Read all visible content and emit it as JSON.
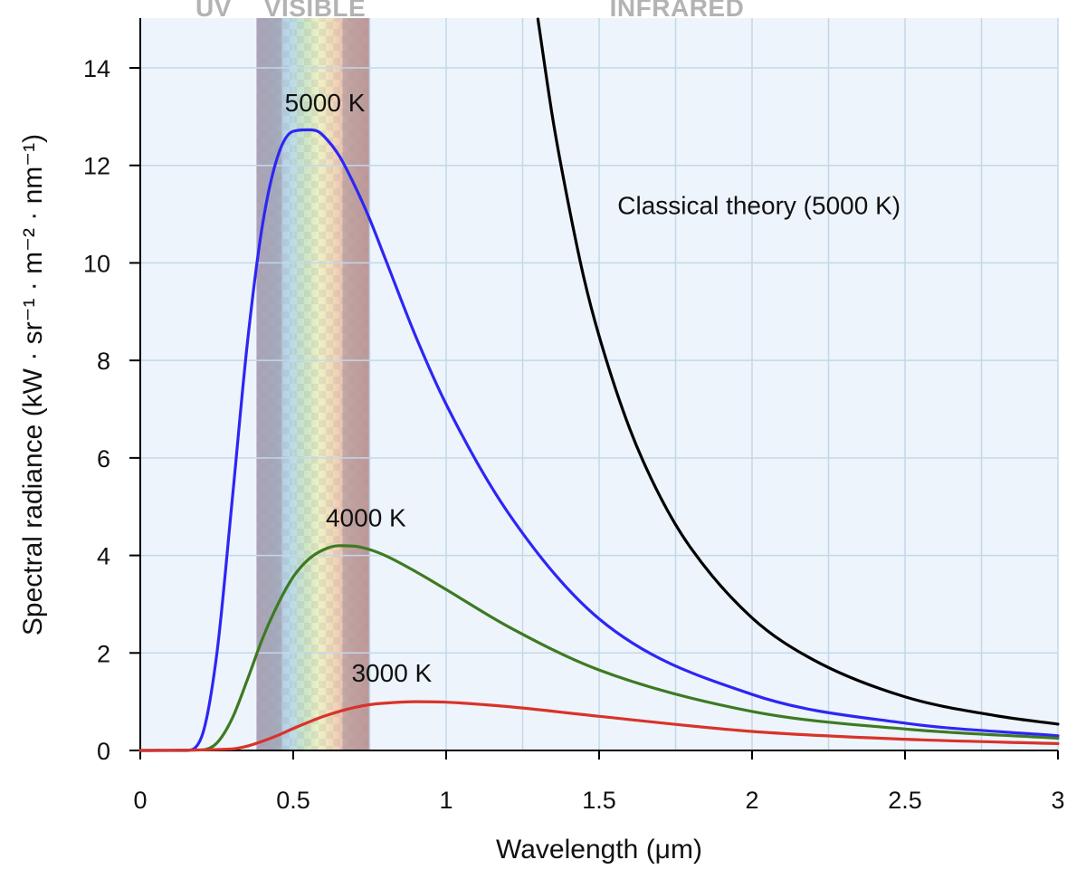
{
  "chart_data": {
    "type": "line",
    "title": "",
    "xlabel": "Wavelength (μm)",
    "ylabel": "Spectral radiance (kW · sr⁻¹ · m⁻² · nm⁻¹)",
    "xlim": [
      0,
      3
    ],
    "ylim": [
      0,
      14.5
    ],
    "x_ticks": [
      "0",
      "0.5",
      "1",
      "1.5",
      "2",
      "2.5",
      "3"
    ],
    "y_ticks": [
      "0",
      "2",
      "4",
      "6",
      "8",
      "10",
      "12",
      "14"
    ],
    "grid": true,
    "regions": [
      {
        "label": "UV",
        "x_range": [
          0,
          0.38
        ]
      },
      {
        "label": "VISIBLE",
        "x_range": [
          0.38,
          0.75
        ]
      },
      {
        "label": "INFRARED",
        "x_range": [
          0.75,
          3
        ]
      }
    ],
    "series": [
      {
        "label": "5000 K",
        "color": "#2d26f5",
        "peak": {
          "x": 0.58,
          "y": 12.7
        },
        "x": [
          0,
          0.15,
          0.2,
          0.25,
          0.3,
          0.35,
          0.4,
          0.45,
          0.5,
          0.55,
          0.58,
          0.6,
          0.65,
          0.7,
          0.75,
          0.8,
          0.9,
          1.0,
          1.2,
          1.5,
          2.0,
          2.5,
          3.0
        ],
        "y": [
          0,
          0.0,
          0.27,
          1.97,
          5.1,
          8.35,
          10.8,
          12.2,
          12.7,
          12.73,
          12.7,
          12.6,
          12.2,
          11.6,
          10.9,
          10.1,
          8.5,
          7.1,
          4.9,
          2.7,
          1.15,
          0.56,
          0.3
        ]
      },
      {
        "label": "4000 K",
        "color": "#3d7a22",
        "peak": {
          "x": 0.72,
          "y": 4.19
        },
        "x": [
          0,
          0.2,
          0.25,
          0.3,
          0.35,
          0.4,
          0.45,
          0.5,
          0.55,
          0.6,
          0.65,
          0.7,
          0.75,
          0.8,
          0.9,
          1.0,
          1.2,
          1.5,
          2.0,
          2.5,
          3.0
        ],
        "y": [
          0,
          0.01,
          0.15,
          0.65,
          1.45,
          2.3,
          3.0,
          3.56,
          3.92,
          4.12,
          4.2,
          4.19,
          4.12,
          4.0,
          3.67,
          3.3,
          2.55,
          1.65,
          0.8,
          0.44,
          0.25
        ]
      },
      {
        "label": "3000 K",
        "color": "#d8332a",
        "peak": {
          "x": 0.97,
          "y": 1.0
        },
        "x": [
          0,
          0.3,
          0.35,
          0.4,
          0.45,
          0.5,
          0.55,
          0.6,
          0.65,
          0.7,
          0.75,
          0.8,
          0.9,
          1.0,
          1.2,
          1.5,
          2.0,
          2.5,
          3.0
        ],
        "y": [
          0,
          0.03,
          0.09,
          0.19,
          0.31,
          0.45,
          0.58,
          0.7,
          0.8,
          0.88,
          0.94,
          0.97,
          1.0,
          0.99,
          0.9,
          0.7,
          0.39,
          0.23,
          0.14
        ]
      },
      {
        "label": "Classical theory (5000 K)",
        "color": "#000000",
        "x": [
          1.3,
          1.35,
          1.4,
          1.45,
          1.5,
          1.6,
          1.7,
          1.8,
          2.0,
          2.2,
          2.5,
          2.8,
          3.0
        ],
        "y": [
          15.0,
          12.9,
          11.2,
          9.7,
          8.5,
          6.6,
          5.2,
          4.15,
          2.72,
          1.86,
          1.1,
          0.71,
          0.54
        ]
      }
    ]
  }
}
